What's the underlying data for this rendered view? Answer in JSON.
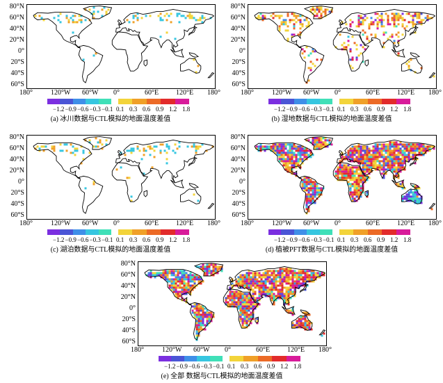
{
  "lat_labels": [
    "80°N",
    "60°N",
    "40°N",
    "20°N",
    "0°",
    "20°S",
    "40°S",
    "60°S"
  ],
  "lon_labels": [
    "180°",
    "120°W",
    "60°W",
    "0°",
    "60°E",
    "120°E",
    "180°"
  ],
  "colorbar": {
    "neg_ticks": [
      "−1.2",
      "−0.9",
      "−0.6",
      "−0.3",
      "−0.1"
    ],
    "pos_ticks": [
      "0.1",
      "0.3",
      "0.6",
      "0.9",
      "1.2",
      "1.8"
    ],
    "neg_colors": [
      "#7b2fe0",
      "#4a55d6",
      "#3f8fe8",
      "#36c6e0",
      "#40e0b8"
    ],
    "pos_colors": [
      "#f3d43a",
      "#f0a028",
      "#ec6a26",
      "#e22b2b",
      "#d81b9a"
    ]
  },
  "panels": [
    {
      "caption": "(a) 冰川数据与CTL模拟的地面温度差值",
      "intensity": "sparse"
    },
    {
      "caption": "(b) 湿地数据与CTL模拟的地面温度差值",
      "intensity": "light"
    },
    {
      "caption": "(c) 湖泊数据与CTL模拟的地面温度差值",
      "intensity": "sparse"
    },
    {
      "caption": "(d) 植被PFT数据与CTL模拟的地面温度差值",
      "intensity": "dense"
    },
    {
      "caption": "(e) 全部 数据与CTL模拟的地面温度差值",
      "intensity": "dense"
    }
  ]
}
